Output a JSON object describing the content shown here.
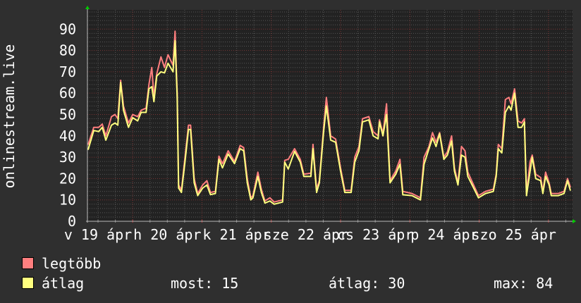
{
  "chart_data": {
    "type": "line",
    "ylabel": "onlinestream.live",
    "ylim": [
      0,
      99
    ],
    "yticks": [
      0,
      10,
      20,
      30,
      40,
      50,
      60,
      70,
      80,
      90
    ],
    "xlim": [
      "19 08:20",
      "26 08:20"
    ],
    "xtick_labels": [
      {
        "at": "19 12:00",
        "label": "v 19 ápr"
      },
      {
        "at": "20 12:00",
        "label": "h 20 ápr"
      },
      {
        "at": "21 12:00",
        "label": "k 21 ápr"
      },
      {
        "at": "22 12:00",
        "label": "sze 22 ápr"
      },
      {
        "at": "23 12:00",
        "label": "cs 23 ápr"
      },
      {
        "at": "24 12:00",
        "label": "p 24 ápr"
      },
      {
        "at": "25 12:00",
        "label": "szo 25 ápr"
      }
    ],
    "grid": true,
    "legend_position": "bottom-left",
    "x": [
      "19 08:35",
      "19 10:32",
      "19 12:15",
      "19 13:28",
      "19 14:42",
      "19 16:39",
      "19 17:53",
      "19 18:52",
      "19 19:50",
      "19 20:49",
      "19 22:32",
      "20 00:00",
      "20 01:43",
      "20 02:57",
      "20 04:39",
      "20 05:38",
      "20 06:37",
      "20 07:21",
      "20 08:20",
      "20 09:48",
      "20 11:01",
      "20 12:15",
      "20 13:58",
      "20 14:41",
      "20 15:25",
      "20 15:55",
      "20 16:53",
      "20 18:07",
      "20 19:20",
      "20 20:04",
      "20 21:18",
      "20 22:31",
      "21 00:14",
      "21 01:42",
      "21 02:56",
      "21 04:39",
      "21 05:52",
      "21 07:06",
      "21 09:04",
      "21 11:16",
      "21 13:14",
      "21 14:27",
      "21 15:41",
      "21 16:54",
      "21 17:38",
      "21 19:21",
      "21 20:34",
      "21 21:48",
      "21 23:31",
      "22 00:59",
      "22 03:55",
      "22 04:39",
      "22 05:53",
      "22 08:05",
      "22 10:03",
      "22 11:16",
      "22 13:43",
      "22 14:27",
      "22 15:41",
      "22 16:39",
      "22 18:08",
      "22 19:06",
      "22 20:34",
      "22 22:17",
      "23 00:00",
      "23 01:28",
      "23 03:40",
      "23 04:54",
      "23 06:22",
      "23 07:36",
      "23 09:48",
      "23 11:16",
      "23 12:59",
      "23 13:28",
      "23 14:41",
      "23 15:55",
      "23 17:08",
      "23 19:06",
      "23 20:34",
      "23 21:33",
      "24 00:44",
      "24 03:40",
      "24 04:54",
      "24 06:37",
      "24 07:51",
      "24 09:04",
      "24 10:18",
      "24 11:46",
      "24 12:59",
      "24 14:27",
      "24 15:26",
      "24 16:39",
      "24 17:53",
      "24 19:06",
      "24 20:05",
      "24 21:33",
      "24 23:45",
      "25 02:12",
      "25 04:54",
      "25 05:53",
      "25 06:37",
      "25 07:51",
      "25 09:04",
      "25 10:18",
      "25 11:02",
      "25 12:15",
      "25 13:28",
      "25 14:42",
      "25 15:40",
      "25 16:24",
      "25 17:38",
      "25 18:22",
      "25 19:35",
      "25 21:18",
      "25 22:03",
      "25 23:01",
      "26 00:14",
      "26 00:58",
      "26 03:25",
      "26 05:22",
      "26 06:36",
      "26 07:35"
    ],
    "series": [
      {
        "name": "legtöbb",
        "color": "#ff7f7f",
        "values": [
          36,
          44,
          44,
          45.5,
          40,
          49,
          50,
          48,
          66,
          54,
          46,
          50,
          49,
          52,
          53,
          64,
          72,
          58,
          69,
          77,
          72,
          78,
          73,
          89,
          60,
          17,
          14.5,
          30,
          45,
          45,
          20,
          13,
          17,
          19,
          13.5,
          14,
          30.5,
          27,
          33,
          28,
          35.5,
          34.5,
          20,
          11,
          12,
          23,
          15,
          9.5,
          11,
          9,
          10,
          28.5,
          29,
          34,
          29,
          22,
          22.5,
          36,
          15,
          19,
          44,
          58,
          40,
          38.5,
          25,
          14.5,
          14.5,
          30,
          35,
          48,
          49,
          42,
          40,
          47.5,
          41,
          55,
          19,
          23.5,
          29,
          14,
          13,
          11,
          30,
          35,
          41.5,
          37,
          41.5,
          30,
          32.5,
          40,
          25,
          18,
          35,
          33,
          23,
          18.5,
          12,
          14,
          15,
          22,
          36,
          34,
          57,
          58,
          55,
          62,
          47,
          46,
          48,
          13,
          28,
          31,
          22,
          20.5,
          14,
          23,
          18,
          13,
          13,
          14,
          20,
          16
        ]
      },
      {
        "name": "átlag",
        "color": "#ffff7f",
        "values": [
          33.6,
          42.5,
          42,
          44,
          38,
          45,
          46,
          45,
          65,
          52,
          44,
          48.5,
          47,
          51,
          51,
          62,
          63,
          56,
          68,
          70,
          69.5,
          74,
          70,
          84.5,
          58,
          15.5,
          13.5,
          28,
          43,
          43,
          18,
          12,
          15.5,
          17,
          12.5,
          13,
          29,
          25,
          31.5,
          27,
          34,
          33,
          18,
          10,
          11,
          21,
          13.5,
          8.5,
          9.5,
          8,
          9,
          27.7,
          24.5,
          32.7,
          27.7,
          21,
          21,
          34,
          13.5,
          18,
          42,
          54,
          38,
          37,
          23.5,
          13.5,
          13.5,
          27.7,
          33,
          46.5,
          47.5,
          40,
          38.6,
          46.5,
          40,
          50,
          18,
          22,
          26.7,
          12.4,
          12,
          10,
          26.7,
          34,
          39,
          35,
          41,
          29,
          31,
          37.6,
          23.5,
          17,
          31,
          30,
          21,
          17,
          11,
          13,
          14,
          21,
          34,
          32,
          51,
          54,
          52,
          60,
          44,
          44,
          46.5,
          12,
          23.5,
          30,
          20,
          19,
          13,
          21,
          17,
          12,
          12,
          13,
          19,
          14.5
        ]
      }
    ]
  },
  "legend": {
    "max_label": "legtöbb",
    "avg_label": "átlag",
    "now": "most: 15",
    "avg": "átlag: 30",
    "max": "max: 84"
  }
}
